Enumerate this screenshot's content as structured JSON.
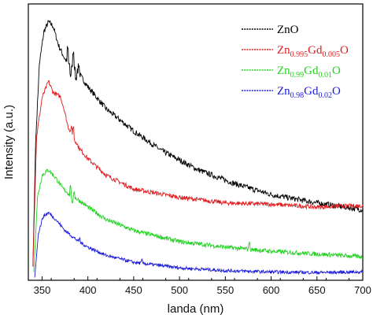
{
  "chart_data": {
    "type": "line",
    "title": "",
    "xlabel": "landa (nm)",
    "ylabel": "Intensity (a.u.)",
    "xlim": [
      335,
      700
    ],
    "ylim": [
      0,
      1.0
    ],
    "x_ticks": [
      350,
      400,
      450,
      500,
      550,
      600,
      650,
      700
    ],
    "y_ticks_shown": false,
    "grid": false,
    "legend_position": "top-right",
    "series": [
      {
        "name_parts": [
          {
            "t": "ZnO",
            "sub": false
          }
        ],
        "color": "#000000",
        "points": [
          [
            340,
            0.05
          ],
          [
            343,
            0.5
          ],
          [
            347,
            0.78
          ],
          [
            352,
            0.9
          ],
          [
            357,
            0.935
          ],
          [
            362,
            0.92
          ],
          [
            368,
            0.85
          ],
          [
            375,
            0.8
          ],
          [
            380,
            0.78
          ],
          [
            385,
            0.77
          ],
          [
            390,
            0.75
          ],
          [
            400,
            0.7
          ],
          [
            420,
            0.62
          ],
          [
            450,
            0.54
          ],
          [
            480,
            0.47
          ],
          [
            520,
            0.4
          ],
          [
            560,
            0.35
          ],
          [
            600,
            0.31
          ],
          [
            650,
            0.28
          ],
          [
            700,
            0.255
          ]
        ],
        "spikes": [
          [
            378,
            0.05
          ],
          [
            381,
            -0.04
          ],
          [
            384,
            0.05
          ],
          [
            387,
            -0.03
          ],
          [
            390,
            0.03
          ]
        ],
        "noise": 0.01
      },
      {
        "name_parts": [
          {
            "t": "Zn",
            "sub": false
          },
          {
            "t": "0.995",
            "sub": true
          },
          {
            "t": "Gd",
            "sub": false
          },
          {
            "t": "0.005",
            "sub": true
          },
          {
            "t": "O",
            "sub": false
          }
        ],
        "color": "#e31a1c",
        "points": [
          [
            340,
            0.05
          ],
          [
            344,
            0.52
          ],
          [
            350,
            0.66
          ],
          [
            357,
            0.72
          ],
          [
            362,
            0.68
          ],
          [
            367,
            0.67
          ],
          [
            370,
            0.665
          ],
          [
            374,
            0.62
          ],
          [
            378,
            0.56
          ],
          [
            382,
            0.53
          ],
          [
            385,
            0.52
          ],
          [
            390,
            0.48
          ],
          [
            400,
            0.44
          ],
          [
            420,
            0.38
          ],
          [
            450,
            0.33
          ],
          [
            500,
            0.3
          ],
          [
            550,
            0.28
          ],
          [
            600,
            0.275
          ],
          [
            650,
            0.265
          ],
          [
            700,
            0.27
          ]
        ],
        "spikes": [
          [
            382,
            0.02
          ],
          [
            384,
            0.03
          ],
          [
            386,
            -0.01
          ]
        ],
        "noise": 0.008
      },
      {
        "name_parts": [
          {
            "t": "Zn",
            "sub": false
          },
          {
            "t": "0.99",
            "sub": true
          },
          {
            "t": "Gd",
            "sub": false
          },
          {
            "t": "0.01",
            "sub": true
          },
          {
            "t": "O",
            "sub": false
          }
        ],
        "color": "#1fd31f",
        "points": [
          [
            341,
            0.03
          ],
          [
            345,
            0.3
          ],
          [
            350,
            0.38
          ],
          [
            357,
            0.4
          ],
          [
            365,
            0.37
          ],
          [
            372,
            0.335
          ],
          [
            380,
            0.31
          ],
          [
            390,
            0.29
          ],
          [
            400,
            0.265
          ],
          [
            420,
            0.22
          ],
          [
            450,
            0.18
          ],
          [
            500,
            0.14
          ],
          [
            550,
            0.12
          ],
          [
            600,
            0.105
          ],
          [
            650,
            0.095
          ],
          [
            700,
            0.085
          ]
        ],
        "spikes": [
          [
            381,
            0.03
          ],
          [
            383,
            -0.03
          ],
          [
            385,
            0.02
          ],
          [
            576,
            0.025
          ]
        ],
        "noise": 0.008
      },
      {
        "name_parts": [
          {
            "t": "Zn",
            "sub": false
          },
          {
            "t": "0.98",
            "sub": true
          },
          {
            "t": "Gd",
            "sub": false
          },
          {
            "t": "0.02",
            "sub": true
          },
          {
            "t": "O",
            "sub": false
          }
        ],
        "color": "#1a1adb",
        "points": [
          [
            342,
            0.01
          ],
          [
            346,
            0.17
          ],
          [
            351,
            0.23
          ],
          [
            357,
            0.245
          ],
          [
            365,
            0.22
          ],
          [
            375,
            0.18
          ],
          [
            390,
            0.14
          ],
          [
            400,
            0.12
          ],
          [
            420,
            0.09
          ],
          [
            450,
            0.065
          ],
          [
            500,
            0.045
          ],
          [
            550,
            0.035
          ],
          [
            600,
            0.03
          ],
          [
            650,
            0.028
          ],
          [
            700,
            0.03
          ]
        ],
        "spikes": [
          [
            391,
            0.012
          ],
          [
            459,
            0.01
          ]
        ],
        "noise": 0.006
      }
    ]
  }
}
